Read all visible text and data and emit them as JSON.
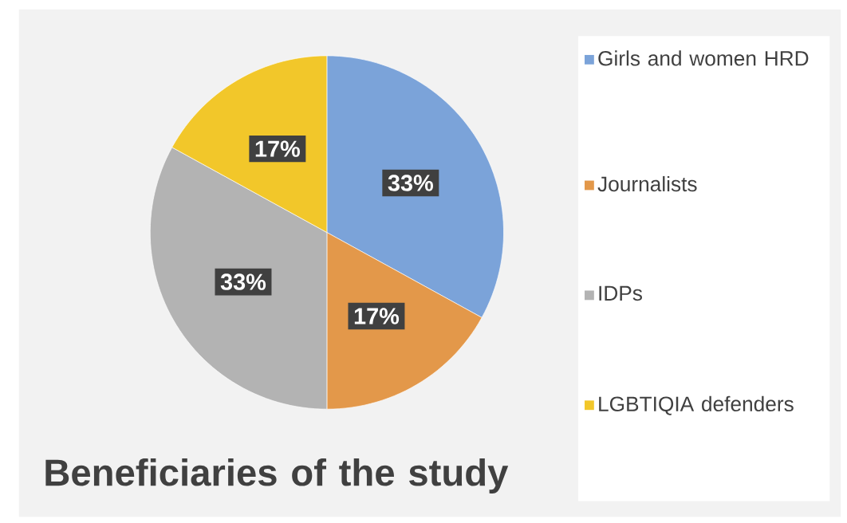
{
  "chart_data": {
    "type": "pie",
    "title": "Beneficiaries of the study",
    "categories": [
      "Girls and women HRD",
      "Journalists",
      "IDPs",
      "LGBTIQIA defenders"
    ],
    "values": [
      33,
      17,
      33,
      17
    ],
    "colors": [
      "#7ba3d9",
      "#e3984a",
      "#b3b3b3",
      "#f2c72a"
    ],
    "value_labels": [
      "33%",
      "17%",
      "33%",
      "17%"
    ],
    "legend": "right"
  }
}
